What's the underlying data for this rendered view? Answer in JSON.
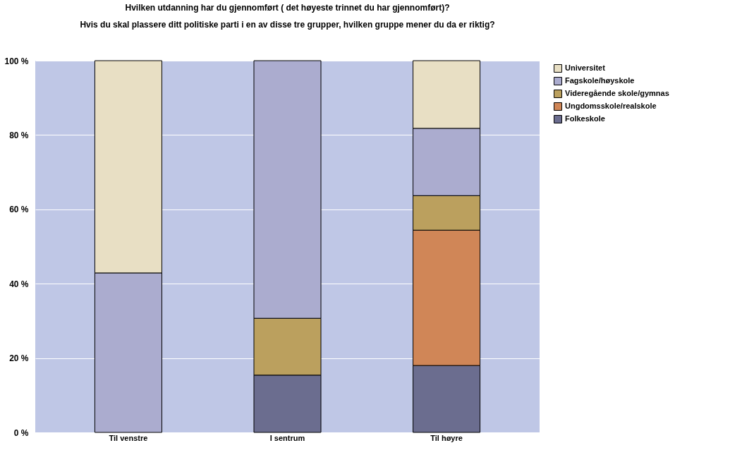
{
  "chart_data": {
    "type": "bar",
    "stacked": true,
    "title": "Hvilken utdanning har du gjennomført ( det høyeste trinnet du har gjennomført)?",
    "subtitle": "Hvis du skal  plassere ditt politiske parti  i en av disse tre grupper, hvilken gruppe mener du da er riktig?",
    "categories": [
      "Til venstre",
      "I sentrum",
      "Til høyre"
    ],
    "series": [
      {
        "name": "Folkeskole",
        "color": "#6b6d8f",
        "values": [
          null,
          15.4,
          18.0
        ]
      },
      {
        "name": "Ungdomsskole/realskole",
        "color": "#d08657",
        "values": [
          null,
          null,
          36.4
        ]
      },
      {
        "name": "Videregående skole/gymnas",
        "color": "#bba05e",
        "values": [
          null,
          15.3,
          9.3
        ]
      },
      {
        "name": "Fagskole/høyskole",
        "color": "#abaccf",
        "values": [
          42.9,
          69.3,
          18.1
        ]
      },
      {
        "name": "Universitet",
        "color": "#e8dfc4",
        "values": [
          57.1,
          null,
          18.2
        ]
      }
    ],
    "ylim": [
      0,
      100
    ],
    "yticks": [
      {
        "value": 0,
        "label": "0 %"
      },
      {
        "value": 20,
        "label": "20 %"
      },
      {
        "value": 40,
        "label": "40 %"
      },
      {
        "value": 60,
        "label": "60 %"
      },
      {
        "value": 80,
        "label": "80 %"
      },
      {
        "value": 100,
        "label": "100 %"
      }
    ],
    "grid": "y",
    "legend": "top right"
  }
}
